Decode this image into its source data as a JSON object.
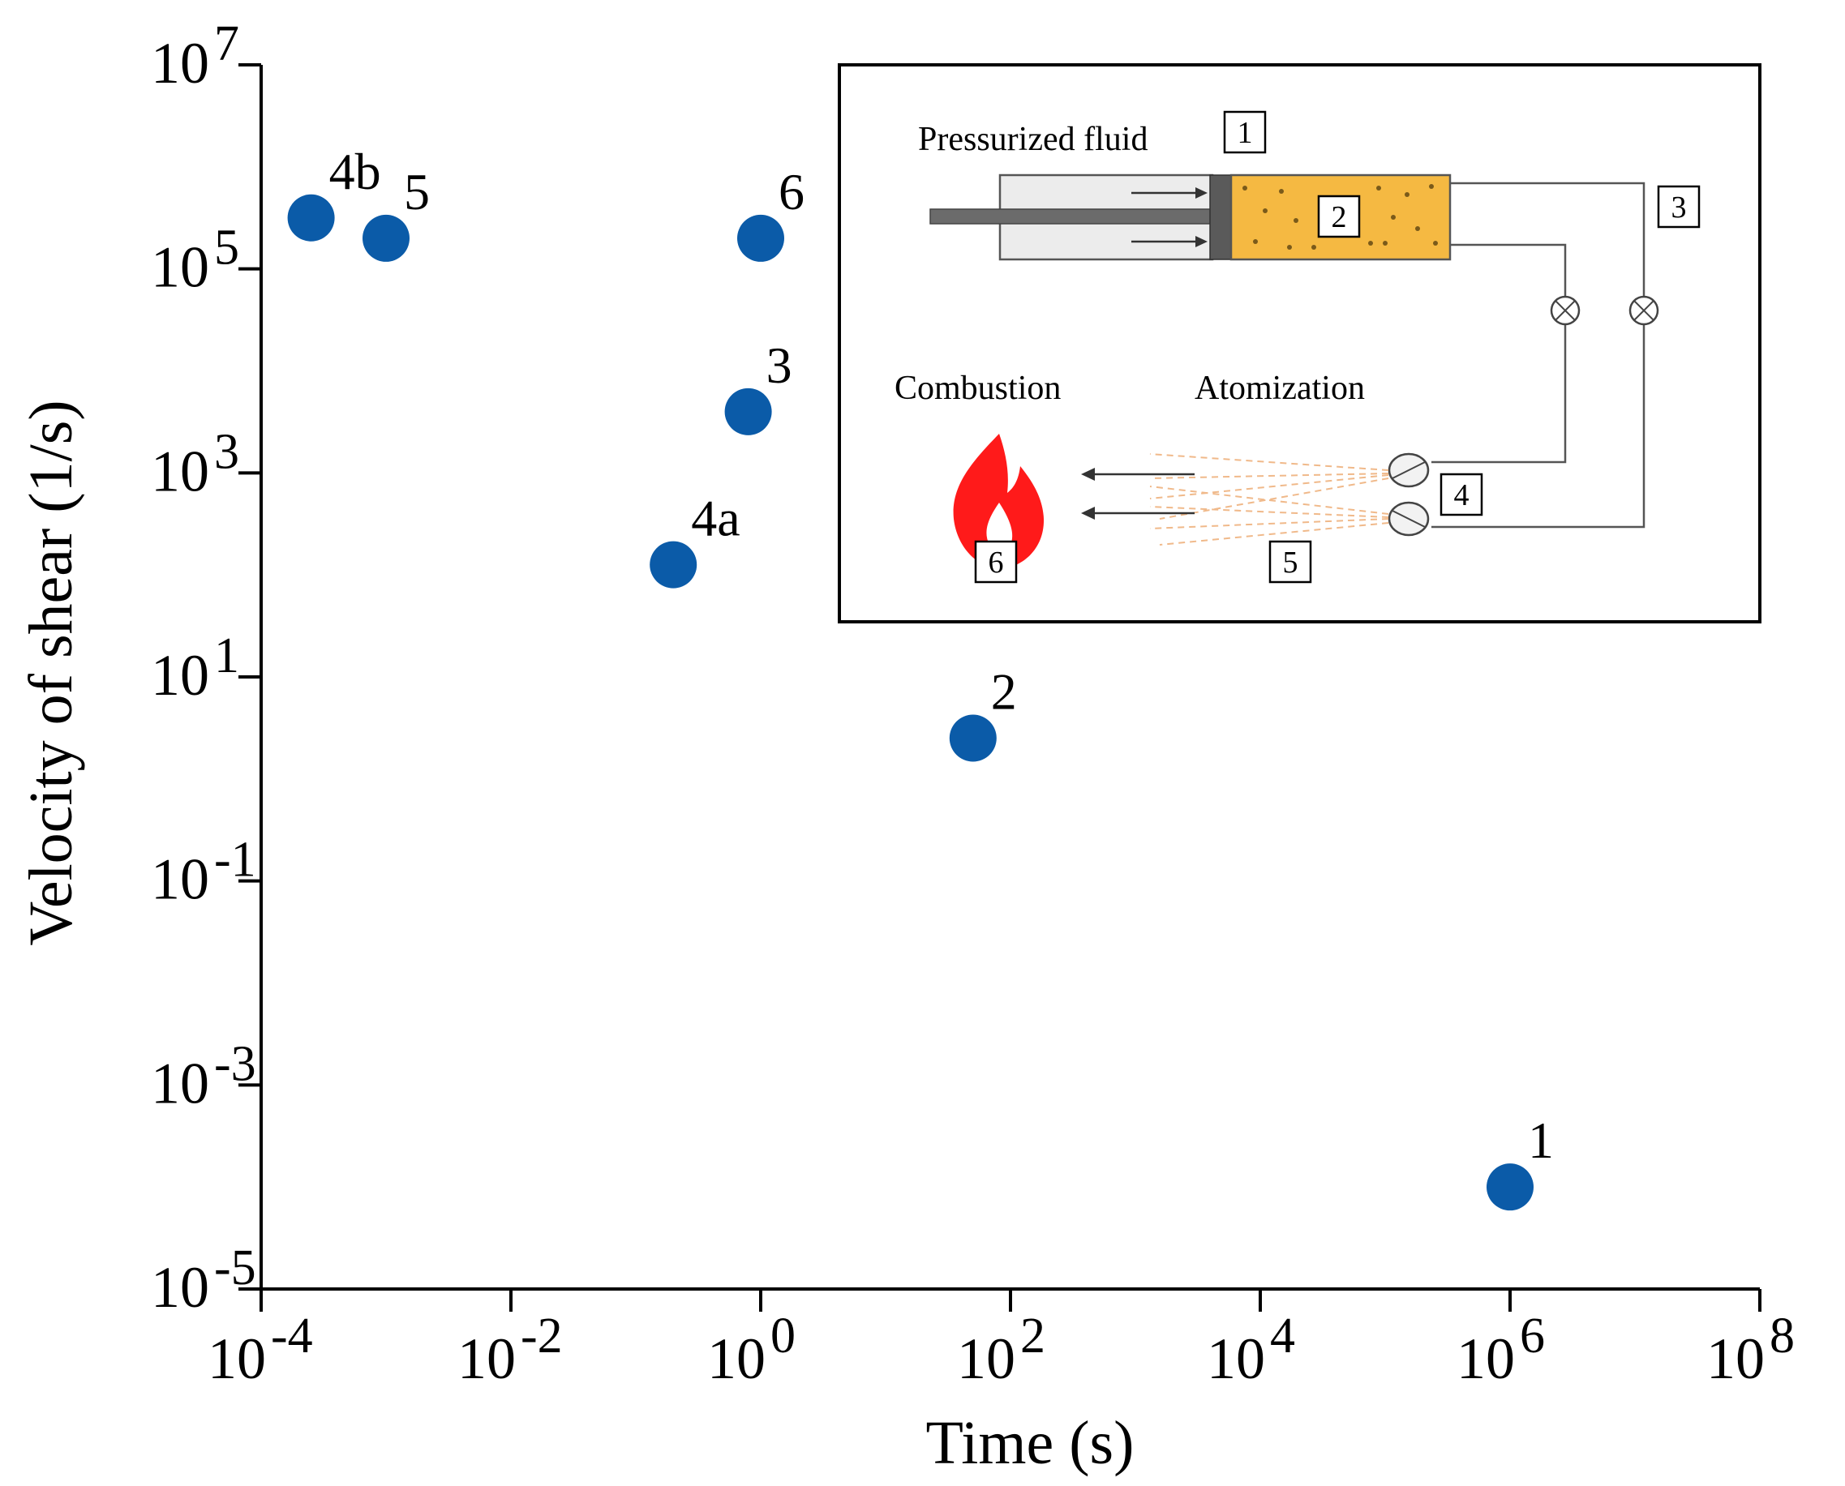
{
  "chart_data": {
    "type": "scatter",
    "title": "",
    "xlabel": "Time (s)",
    "ylabel": "Velocity of shear (1/s)",
    "x_scale": "log",
    "y_scale": "log",
    "xlim_log10": [
      -4,
      8
    ],
    "ylim_log10": [
      -5,
      7
    ],
    "x_ticks": [
      {
        "base": "10",
        "exp": "-4",
        "log": -4
      },
      {
        "base": "10",
        "exp": "-2",
        "log": -2
      },
      {
        "base": "10",
        "exp": "0",
        "log": 0
      },
      {
        "base": "10",
        "exp": "2",
        "log": 2
      },
      {
        "base": "10",
        "exp": "4",
        "log": 4
      },
      {
        "base": "10",
        "exp": "6",
        "log": 6
      },
      {
        "base": "10",
        "exp": "8",
        "log": 8
      }
    ],
    "y_ticks": [
      {
        "base": "10",
        "exp": "7",
        "log": 7
      },
      {
        "base": "10",
        "exp": "5",
        "log": 5
      },
      {
        "base": "10",
        "exp": "3",
        "log": 3
      },
      {
        "base": "10",
        "exp": "1",
        "log": 1
      },
      {
        "base": "10",
        "exp": "-1",
        "log": -1
      },
      {
        "base": "10",
        "exp": "-3",
        "log": -3
      },
      {
        "base": "10",
        "exp": "-5",
        "log": -5
      }
    ],
    "points": [
      {
        "label": "1",
        "x_log10": 6.0,
        "y_log10": -4.0
      },
      {
        "label": "2",
        "x_log10": 1.7,
        "y_log10": 0.4
      },
      {
        "label": "3",
        "x_log10": -0.1,
        "y_log10": 3.6
      },
      {
        "label": "4a",
        "x_log10": -0.7,
        "y_log10": 2.1
      },
      {
        "label": "4b",
        "x_log10": -3.6,
        "y_log10": 5.5
      },
      {
        "label": "5",
        "x_log10": -3.0,
        "y_log10": 5.3
      },
      {
        "label": "6",
        "x_log10": 0.0,
        "y_log10": 5.3
      }
    ],
    "point_color": "#0b5ba8"
  },
  "inset": {
    "pressurized_fluid_label": "Pressurized fluid",
    "combustion_label": "Combustion",
    "atomization_label": "Atomization",
    "box_1": "1",
    "box_2": "2",
    "box_3": "3",
    "box_4": "4",
    "box_5": "5",
    "box_6": "6",
    "fluid_color": "#f5b942",
    "flame_color": "#ff1a1a",
    "spray_color": "#f0b98a"
  }
}
